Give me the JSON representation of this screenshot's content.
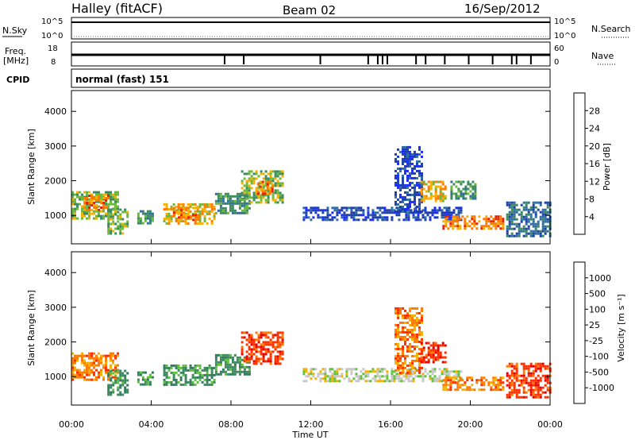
{
  "header": {
    "station": "Halley (fitACF)",
    "beam": "Beam 02",
    "date": "16/Sep/2012"
  },
  "params": {
    "nsky_label": "N.Sky",
    "nsky_ticks": [
      "10^5",
      "10^0"
    ],
    "nsearch_label": "N.Search",
    "nsearch_ticks": [
      "10^5",
      "10^0"
    ],
    "freq_label_1": "Freq.",
    "freq_label_2": "[MHz]",
    "freq_ticks": [
      "18",
      "8"
    ],
    "nave_label": "Nave",
    "nave_ticks": [
      "60",
      "0"
    ],
    "cpid_label": "CPID",
    "cpid_value": "normal (fast) 151"
  },
  "chart_data": [
    {
      "type": "heatmap",
      "name": "power",
      "ylabel": "Slant Range [km]",
      "ylim": [
        180,
        4600
      ],
      "yticks": [
        "1000",
        "2000",
        "3000",
        "4000"
      ],
      "colorbar_label": "Power [dB]",
      "colorbar_ticks": [
        "4",
        "8",
        "12",
        "16",
        "20",
        "24",
        "28"
      ],
      "colors": [
        "#1a2cff",
        "#1f3fa6",
        "#2f6ea0",
        "#3d8a5e",
        "#6bb83a",
        "#f6b000",
        "#ff7a00",
        "#e62200"
      ],
      "patches": [
        {
          "t0": 0.0,
          "t1": 2.3,
          "r0": 900,
          "r1": 1700,
          "level": 4
        },
        {
          "t0": 0.6,
          "t1": 1.8,
          "r0": 1150,
          "r1": 1600,
          "level": 6
        },
        {
          "t0": 1.8,
          "t1": 2.8,
          "r0": 500,
          "r1": 1200,
          "level": 4
        },
        {
          "t0": 3.3,
          "t1": 4.1,
          "r0": 800,
          "r1": 1150,
          "level": 3
        },
        {
          "t0": 4.6,
          "t1": 7.2,
          "r0": 800,
          "r1": 1350,
          "level": 5
        },
        {
          "t0": 5.1,
          "t1": 6.3,
          "r0": 900,
          "r1": 1250,
          "level": 6
        },
        {
          "t0": 7.2,
          "t1": 8.9,
          "r0": 1100,
          "r1": 1650,
          "level": 3
        },
        {
          "t0": 8.5,
          "t1": 10.6,
          "r0": 1400,
          "r1": 2300,
          "level": 4
        },
        {
          "t0": 9.3,
          "t1": 10.1,
          "r0": 1600,
          "r1": 2000,
          "level": 6
        },
        {
          "t0": 11.6,
          "t1": 19.5,
          "r0": 900,
          "r1": 1250,
          "level": 1
        },
        {
          "t0": 16.2,
          "t1": 17.6,
          "r0": 1100,
          "r1": 3000,
          "level": 1
        },
        {
          "t0": 17.5,
          "t1": 18.7,
          "r0": 1400,
          "r1": 2000,
          "level": 5
        },
        {
          "t0": 18.6,
          "t1": 21.6,
          "r0": 650,
          "r1": 1000,
          "level": 6
        },
        {
          "t0": 19.0,
          "t1": 20.2,
          "r0": 1500,
          "r1": 2000,
          "level": 3
        },
        {
          "t0": 21.8,
          "t1": 24.0,
          "r0": 400,
          "r1": 1400,
          "level": 2
        }
      ]
    },
    {
      "type": "heatmap",
      "name": "velocity",
      "ylabel": "Slant Range [km]",
      "ylim": [
        180,
        4600
      ],
      "yticks": [
        "1000",
        "2000",
        "3000",
        "4000"
      ],
      "xlabel": "Time UT",
      "xticks": [
        "00:00",
        "04:00",
        "08:00",
        "12:00",
        "16:00",
        "20:00",
        "00:00"
      ],
      "colorbar_label": "Velocity [m s⁻¹]",
      "colorbar_ticks": [
        "1000",
        "500",
        "100",
        "25",
        "-25",
        "-100",
        "-500",
        "-1000"
      ],
      "colors": [
        "#1a2cff",
        "#1f3fa6",
        "#2f7a5e",
        "#3d8a5e",
        "#5fc23a",
        "#c8c8c8",
        "#f6b000",
        "#ff7a00",
        "#ff3000",
        "#e60000"
      ],
      "patches": [
        {
          "t0": 0.0,
          "t1": 2.3,
          "r0": 900,
          "r1": 1700,
          "level": 7
        },
        {
          "t0": 1.8,
          "t1": 2.8,
          "r0": 500,
          "r1": 1200,
          "level": 3
        },
        {
          "t0": 3.3,
          "t1": 4.1,
          "r0": 800,
          "r1": 1150,
          "level": 3
        },
        {
          "t0": 4.6,
          "t1": 7.2,
          "r0": 800,
          "r1": 1350,
          "level": 3
        },
        {
          "t0": 7.2,
          "t1": 8.9,
          "r0": 1100,
          "r1": 1650,
          "level": 3
        },
        {
          "t0": 8.5,
          "t1": 10.6,
          "r0": 1400,
          "r1": 2300,
          "level": 8
        },
        {
          "t0": 11.6,
          "t1": 19.5,
          "r0": 900,
          "r1": 1250,
          "level": 5
        },
        {
          "t0": 16.2,
          "t1": 17.6,
          "r0": 1100,
          "r1": 3000,
          "level": 7
        },
        {
          "t0": 17.5,
          "t1": 18.7,
          "r0": 1400,
          "r1": 2000,
          "level": 8
        },
        {
          "t0": 18.6,
          "t1": 21.6,
          "r0": 650,
          "r1": 1000,
          "level": 7
        },
        {
          "t0": 21.8,
          "t1": 24.0,
          "r0": 400,
          "r1": 1400,
          "level": 8
        }
      ]
    }
  ]
}
